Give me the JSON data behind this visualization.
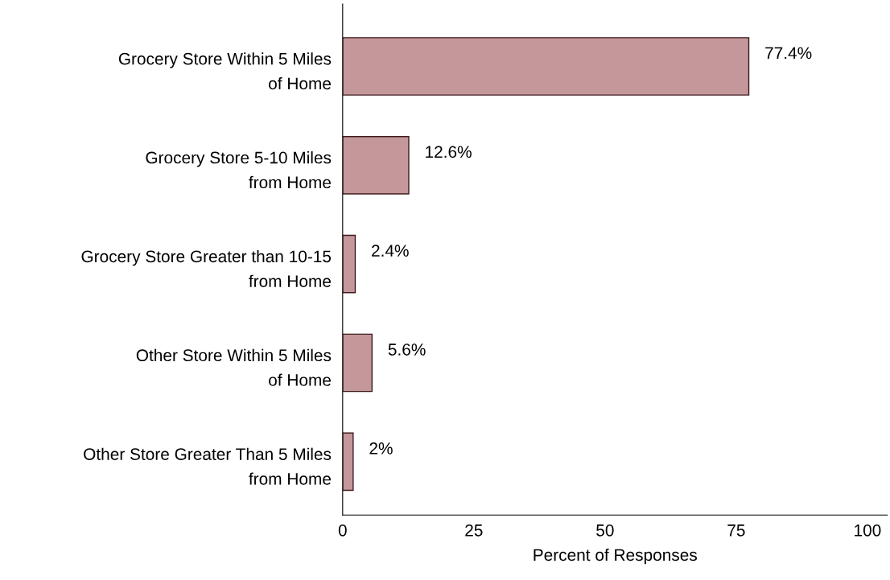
{
  "chart_data": {
    "type": "bar",
    "orientation": "horizontal",
    "categories": [
      "Grocery Store Within 5 Miles\nof Home",
      "Grocery Store 5-10 Miles\nfrom Home",
      "Grocery Store Greater than 10-15\nfrom Home",
      "Other Store Within 5 Miles\nof Home",
      "Other Store Greater Than 5 Miles\nfrom Home"
    ],
    "values": [
      77.4,
      12.6,
      2.4,
      5.6,
      2
    ],
    "value_labels": [
      "77.4%",
      "12.6%",
      "2.4%",
      "5.6%",
      "2%"
    ],
    "color": "#c4979a",
    "xlabel": "Percent of Responses",
    "xlim": [
      0,
      103.8
    ],
    "xticks": [
      0,
      25,
      50,
      75,
      100
    ],
    "grid": false,
    "legend": false
  }
}
